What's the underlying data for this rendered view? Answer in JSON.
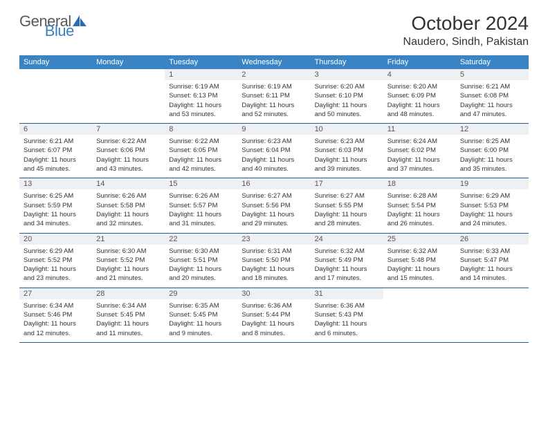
{
  "brand": {
    "part1": "General",
    "part2": "Blue"
  },
  "title": "October 2024",
  "location": "Naudero, Sindh, Pakistan",
  "colors": {
    "header_bg": "#3a84c4",
    "header_text": "#ffffff",
    "daynum_bg": "#eef1f3",
    "row_border": "#2a5a8a",
    "logo_blue": "#2a6db3"
  },
  "dow": [
    "Sunday",
    "Monday",
    "Tuesday",
    "Wednesday",
    "Thursday",
    "Friday",
    "Saturday"
  ],
  "weeks": [
    [
      {
        "n": "",
        "sr": "",
        "ss": "",
        "dl": ""
      },
      {
        "n": "",
        "sr": "",
        "ss": "",
        "dl": ""
      },
      {
        "n": "1",
        "sr": "Sunrise: 6:19 AM",
        "ss": "Sunset: 6:13 PM",
        "dl": "Daylight: 11 hours and 53 minutes."
      },
      {
        "n": "2",
        "sr": "Sunrise: 6:19 AM",
        "ss": "Sunset: 6:11 PM",
        "dl": "Daylight: 11 hours and 52 minutes."
      },
      {
        "n": "3",
        "sr": "Sunrise: 6:20 AM",
        "ss": "Sunset: 6:10 PM",
        "dl": "Daylight: 11 hours and 50 minutes."
      },
      {
        "n": "4",
        "sr": "Sunrise: 6:20 AM",
        "ss": "Sunset: 6:09 PM",
        "dl": "Daylight: 11 hours and 48 minutes."
      },
      {
        "n": "5",
        "sr": "Sunrise: 6:21 AM",
        "ss": "Sunset: 6:08 PM",
        "dl": "Daylight: 11 hours and 47 minutes."
      }
    ],
    [
      {
        "n": "6",
        "sr": "Sunrise: 6:21 AM",
        "ss": "Sunset: 6:07 PM",
        "dl": "Daylight: 11 hours and 45 minutes."
      },
      {
        "n": "7",
        "sr": "Sunrise: 6:22 AM",
        "ss": "Sunset: 6:06 PM",
        "dl": "Daylight: 11 hours and 43 minutes."
      },
      {
        "n": "8",
        "sr": "Sunrise: 6:22 AM",
        "ss": "Sunset: 6:05 PM",
        "dl": "Daylight: 11 hours and 42 minutes."
      },
      {
        "n": "9",
        "sr": "Sunrise: 6:23 AM",
        "ss": "Sunset: 6:04 PM",
        "dl": "Daylight: 11 hours and 40 minutes."
      },
      {
        "n": "10",
        "sr": "Sunrise: 6:23 AM",
        "ss": "Sunset: 6:03 PM",
        "dl": "Daylight: 11 hours and 39 minutes."
      },
      {
        "n": "11",
        "sr": "Sunrise: 6:24 AM",
        "ss": "Sunset: 6:02 PM",
        "dl": "Daylight: 11 hours and 37 minutes."
      },
      {
        "n": "12",
        "sr": "Sunrise: 6:25 AM",
        "ss": "Sunset: 6:00 PM",
        "dl": "Daylight: 11 hours and 35 minutes."
      }
    ],
    [
      {
        "n": "13",
        "sr": "Sunrise: 6:25 AM",
        "ss": "Sunset: 5:59 PM",
        "dl": "Daylight: 11 hours and 34 minutes."
      },
      {
        "n": "14",
        "sr": "Sunrise: 6:26 AM",
        "ss": "Sunset: 5:58 PM",
        "dl": "Daylight: 11 hours and 32 minutes."
      },
      {
        "n": "15",
        "sr": "Sunrise: 6:26 AM",
        "ss": "Sunset: 5:57 PM",
        "dl": "Daylight: 11 hours and 31 minutes."
      },
      {
        "n": "16",
        "sr": "Sunrise: 6:27 AM",
        "ss": "Sunset: 5:56 PM",
        "dl": "Daylight: 11 hours and 29 minutes."
      },
      {
        "n": "17",
        "sr": "Sunrise: 6:27 AM",
        "ss": "Sunset: 5:55 PM",
        "dl": "Daylight: 11 hours and 28 minutes."
      },
      {
        "n": "18",
        "sr": "Sunrise: 6:28 AM",
        "ss": "Sunset: 5:54 PM",
        "dl": "Daylight: 11 hours and 26 minutes."
      },
      {
        "n": "19",
        "sr": "Sunrise: 6:29 AM",
        "ss": "Sunset: 5:53 PM",
        "dl": "Daylight: 11 hours and 24 minutes."
      }
    ],
    [
      {
        "n": "20",
        "sr": "Sunrise: 6:29 AM",
        "ss": "Sunset: 5:52 PM",
        "dl": "Daylight: 11 hours and 23 minutes."
      },
      {
        "n": "21",
        "sr": "Sunrise: 6:30 AM",
        "ss": "Sunset: 5:52 PM",
        "dl": "Daylight: 11 hours and 21 minutes."
      },
      {
        "n": "22",
        "sr": "Sunrise: 6:30 AM",
        "ss": "Sunset: 5:51 PM",
        "dl": "Daylight: 11 hours and 20 minutes."
      },
      {
        "n": "23",
        "sr": "Sunrise: 6:31 AM",
        "ss": "Sunset: 5:50 PM",
        "dl": "Daylight: 11 hours and 18 minutes."
      },
      {
        "n": "24",
        "sr": "Sunrise: 6:32 AM",
        "ss": "Sunset: 5:49 PM",
        "dl": "Daylight: 11 hours and 17 minutes."
      },
      {
        "n": "25",
        "sr": "Sunrise: 6:32 AM",
        "ss": "Sunset: 5:48 PM",
        "dl": "Daylight: 11 hours and 15 minutes."
      },
      {
        "n": "26",
        "sr": "Sunrise: 6:33 AM",
        "ss": "Sunset: 5:47 PM",
        "dl": "Daylight: 11 hours and 14 minutes."
      }
    ],
    [
      {
        "n": "27",
        "sr": "Sunrise: 6:34 AM",
        "ss": "Sunset: 5:46 PM",
        "dl": "Daylight: 11 hours and 12 minutes."
      },
      {
        "n": "28",
        "sr": "Sunrise: 6:34 AM",
        "ss": "Sunset: 5:45 PM",
        "dl": "Daylight: 11 hours and 11 minutes."
      },
      {
        "n": "29",
        "sr": "Sunrise: 6:35 AM",
        "ss": "Sunset: 5:45 PM",
        "dl": "Daylight: 11 hours and 9 minutes."
      },
      {
        "n": "30",
        "sr": "Sunrise: 6:36 AM",
        "ss": "Sunset: 5:44 PM",
        "dl": "Daylight: 11 hours and 8 minutes."
      },
      {
        "n": "31",
        "sr": "Sunrise: 6:36 AM",
        "ss": "Sunset: 5:43 PM",
        "dl": "Daylight: 11 hours and 6 minutes."
      },
      {
        "n": "",
        "sr": "",
        "ss": "",
        "dl": ""
      },
      {
        "n": "",
        "sr": "",
        "ss": "",
        "dl": ""
      }
    ]
  ]
}
